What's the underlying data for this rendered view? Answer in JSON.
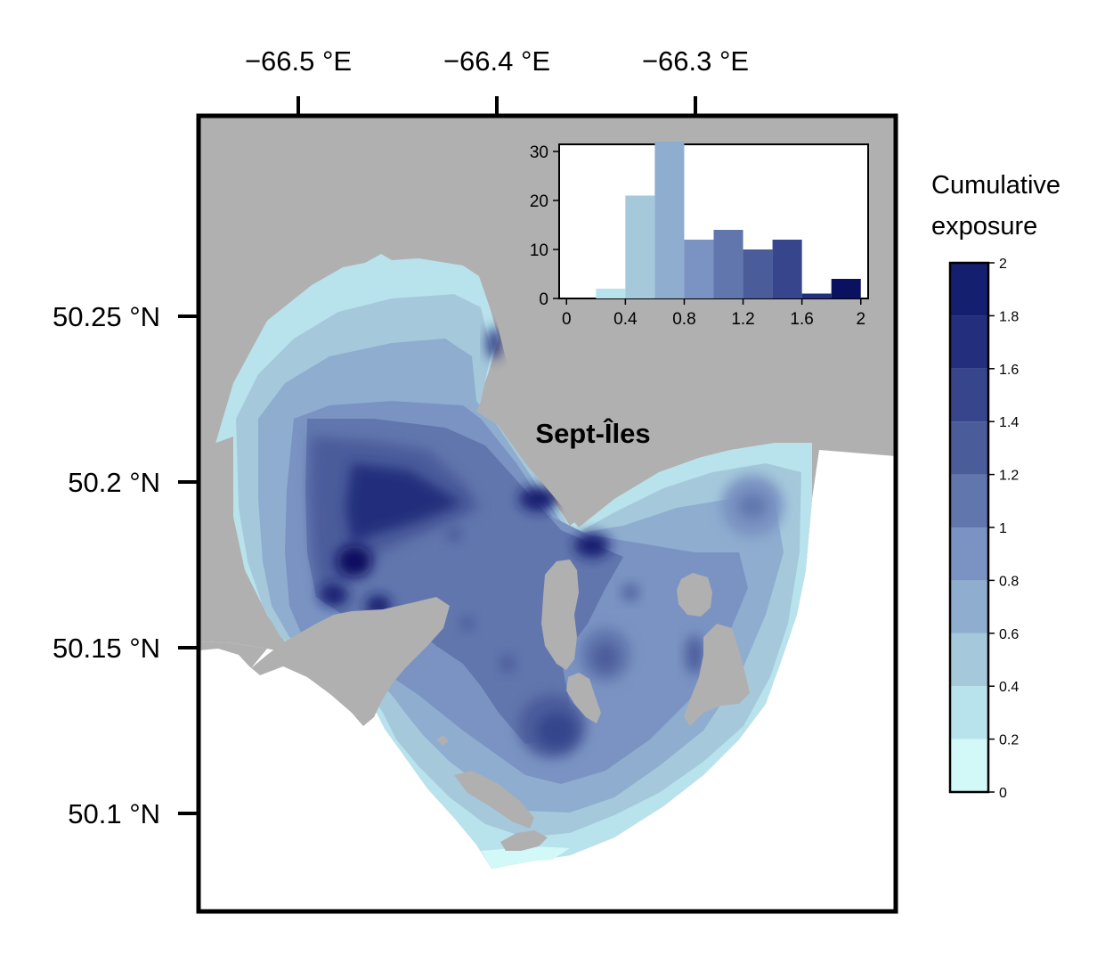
{
  "map": {
    "place_label": "Sept-Îles",
    "lon_ticks": [
      "−66.5 °E",
      "−66.4 °E",
      "−66.3 °E"
    ],
    "lat_ticks": [
      "50.25 °N",
      "50.2 °N",
      "50.15 °N",
      "50.1 °N"
    ],
    "land_color": "#b0b0b0",
    "water_color": "#ffffff"
  },
  "legend": {
    "title_line1": "Cumulative",
    "title_line2": "exposure",
    "ticks": [
      "0",
      "0.2",
      "0.4",
      "0.6",
      "0.8",
      "1",
      "1.2",
      "1.4",
      "1.6",
      "1.8",
      "2"
    ],
    "colors": [
      "#d2f8f8",
      "#b9e3ec",
      "#a5c9db",
      "#8eadcf",
      "#7a93c2",
      "#6176ad",
      "#4b5c9b",
      "#36458c",
      "#232e7c",
      "#151f70",
      "#0a1160"
    ]
  },
  "chart_data": {
    "type": "bar",
    "title": "",
    "xlabel": "",
    "ylabel": "",
    "x_ticks": [
      "0",
      "0.4",
      "0.8",
      "1.2",
      "1.6",
      "2"
    ],
    "y_ticks": [
      "0",
      "10",
      "20",
      "30"
    ],
    "xlim": [
      -0.05,
      2.05
    ],
    "ylim": [
      0,
      30
    ],
    "bin_edges": [
      0,
      0.2,
      0.4,
      0.6,
      0.8,
      1.0,
      1.2,
      1.4,
      1.6,
      1.8,
      2.0
    ],
    "values": [
      0,
      2,
      21,
      32,
      12,
      14,
      10,
      12,
      1,
      4
    ],
    "colors": [
      "#d2f8f8",
      "#b9e3ec",
      "#a5c9db",
      "#8eadcf",
      "#7a93c2",
      "#6176ad",
      "#4b5c9b",
      "#36458c",
      "#232e7c",
      "#0a1160"
    ]
  }
}
